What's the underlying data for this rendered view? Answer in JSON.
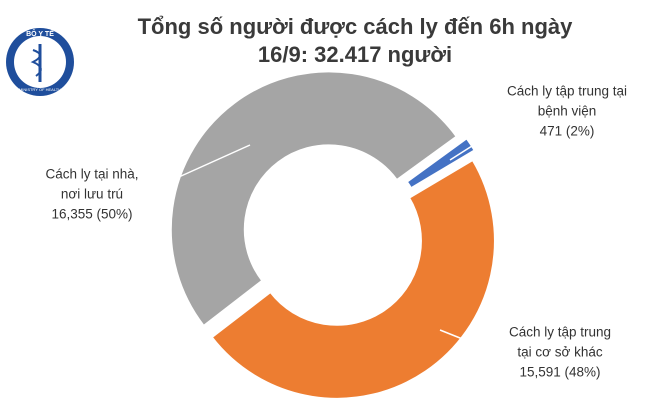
{
  "logo": {
    "name": "BỘ Y TẾ",
    "subtitle": "MINISTRY OF HEALTH"
  },
  "chart_data": {
    "type": "donut",
    "title": [
      "Tổng số người được cách ly đến 6h ngày",
      "16/9: 32.417 người"
    ],
    "categories": [
      [
        "Cách ly tập trung tại",
        "bệnh viện"
      ],
      [
        "Cách ly tập trung",
        "tại cơ sở khác"
      ],
      [
        "Cách ly tại nhà,",
        "nơi lưu trú"
      ]
    ],
    "values": [
      471,
      15591,
      16355
    ],
    "value_labels": [
      "471 (2%)",
      "15,591 (48%)",
      "16,355 (50%)"
    ],
    "colors": [
      "#4472c4",
      "#ed7d31",
      "#a5a5a5"
    ]
  }
}
